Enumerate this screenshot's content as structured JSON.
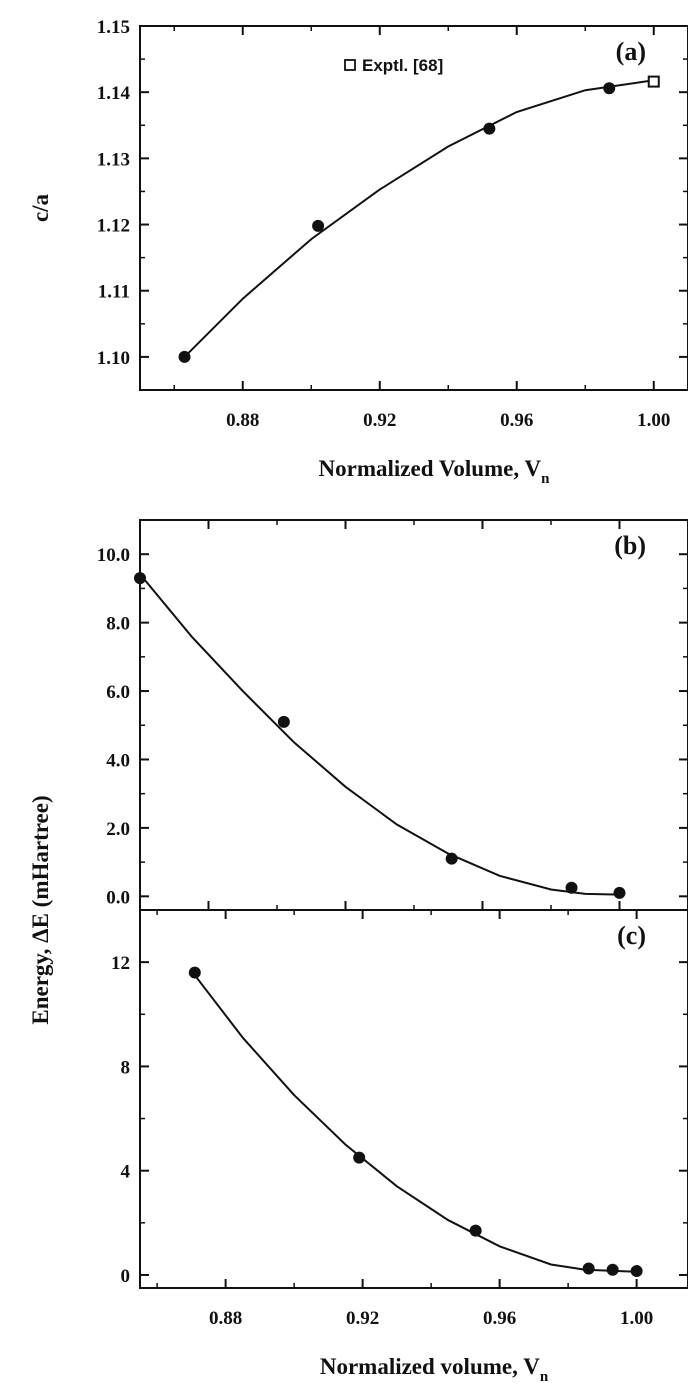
{
  "chart_data": [
    {
      "panel": "a",
      "type": "scatter",
      "panel_label": "(a)",
      "xlabel": "Normalized Volume, V",
      "xlabel_sub": "n",
      "ylabel": "c/a",
      "xlim": [
        0.85,
        1.01
      ],
      "ylim": [
        1.095,
        1.15
      ],
      "xticks": [
        "0.88",
        "0.92",
        "0.96",
        "1.00"
      ],
      "yticks": [
        "1.10",
        "1.11",
        "1.12",
        "1.13",
        "1.14",
        "1.15"
      ],
      "legend": {
        "label": "Exptl. [68]",
        "marker": "open-square",
        "position": "top-center"
      },
      "series": [
        {
          "marker": "filled-circle",
          "x": [
            0.863,
            0.902,
            0.952,
            0.987
          ],
          "y": [
            1.1,
            1.1198,
            1.1345,
            1.1406
          ]
        },
        {
          "name": "Exptl. [68]",
          "marker": "open-square",
          "x": [
            1.0
          ],
          "y": [
            1.1416
          ]
        }
      ],
      "fit": {
        "x": [
          0.863,
          0.88,
          0.9,
          0.92,
          0.94,
          0.96,
          0.98,
          1.0
        ],
        "y": [
          1.1,
          1.1088,
          1.1178,
          1.1253,
          1.1318,
          1.137,
          1.1403,
          1.1418
        ]
      }
    },
    {
      "panel": "b",
      "type": "scatter",
      "panel_label": "(b)",
      "xlim": [
        0.86,
        1.02
      ],
      "ylim": [
        -0.4,
        11.0
      ],
      "yticks": [
        "0.0",
        "2.0",
        "4.0",
        "6.0",
        "8.0",
        "10.0"
      ],
      "series": [
        {
          "marker": "filled-circle",
          "x": [
            0.86,
            0.902,
            0.951,
            0.986,
            1.0
          ],
          "y": [
            9.3,
            5.1,
            1.1,
            0.25,
            0.1
          ]
        }
      ],
      "fit": {
        "x": [
          0.861,
          0.875,
          0.89,
          0.905,
          0.92,
          0.935,
          0.95,
          0.965,
          0.98,
          0.99,
          1.0
        ],
        "y": [
          9.3,
          7.6,
          6.0,
          4.5,
          3.2,
          2.1,
          1.25,
          0.6,
          0.2,
          0.07,
          0.05
        ]
      }
    },
    {
      "panel": "c",
      "type": "scatter",
      "panel_label": "(c)",
      "xlabel": "Normalized volume, V",
      "xlabel_sub": "n",
      "xlim": [
        0.855,
        1.015
      ],
      "ylim": [
        -0.5,
        14.0
      ],
      "xticks": [
        "0.88",
        "0.92",
        "0.96",
        "1.00"
      ],
      "yticks": [
        "0",
        "4",
        "8",
        "12"
      ],
      "series": [
        {
          "marker": "filled-circle",
          "x": [
            0.871,
            0.919,
            0.953,
            0.986,
            0.993,
            1.0
          ],
          "y": [
            11.6,
            4.5,
            1.7,
            0.25,
            0.2,
            0.15
          ]
        }
      ],
      "fit": {
        "x": [
          0.871,
          0.885,
          0.9,
          0.915,
          0.93,
          0.945,
          0.96,
          0.975,
          0.985,
          1.0
        ],
        "y": [
          11.5,
          9.1,
          6.9,
          5.0,
          3.4,
          2.1,
          1.1,
          0.4,
          0.2,
          0.12
        ]
      }
    }
  ],
  "shared_ylabel": "Energy,  ΔE  (mHartree)"
}
